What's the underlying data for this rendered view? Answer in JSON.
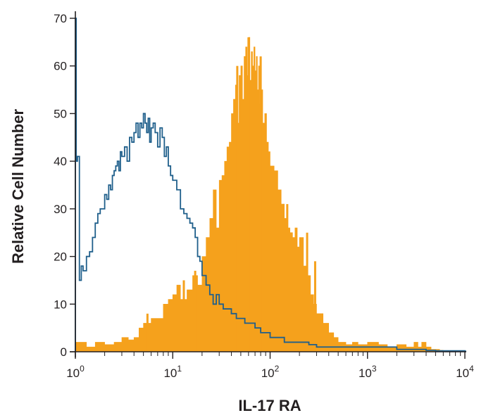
{
  "chart_data": {
    "type": "area",
    "title": "",
    "xlabel": "IL-17 RA",
    "ylabel": "Relative Cell Number",
    "x_scale": "log",
    "xlim": [
      1,
      10000
    ],
    "ylim": [
      0,
      70
    ],
    "x_ticks": [
      {
        "value": 1,
        "base": "10",
        "exp": "0"
      },
      {
        "value": 10,
        "base": "10",
        "exp": "1"
      },
      {
        "value": 100,
        "base": "10",
        "exp": "2"
      },
      {
        "value": 1000,
        "base": "10",
        "exp": "3"
      },
      {
        "value": 10000,
        "base": "10",
        "exp": "4"
      }
    ],
    "y_ticks": [
      "0",
      "10",
      "20",
      "30",
      "40",
      "50",
      "60",
      "70"
    ],
    "grid": false,
    "legend": "none",
    "series": [
      {
        "style": "filled",
        "color": "#f5a11c",
        "x": [
          1,
          1.3,
          1.6,
          2,
          2.5,
          3,
          3.5,
          4,
          4.5,
          5,
          6,
          7,
          8,
          9,
          10,
          11,
          12,
          14,
          16,
          18,
          20,
          22,
          24,
          26,
          28,
          30,
          32,
          34,
          36,
          38,
          40,
          42,
          44,
          46,
          48,
          50,
          52,
          54,
          56,
          58,
          60,
          62,
          64,
          66,
          68,
          70,
          72,
          74,
          76,
          78,
          80,
          84,
          88,
          92,
          96,
          100,
          110,
          120,
          130,
          140,
          150,
          160,
          170,
          180,
          190,
          200,
          220,
          240,
          260,
          280,
          300,
          350,
          400,
          450,
          500,
          600,
          700,
          800,
          1000,
          1300,
          1600,
          2000,
          2500,
          3000,
          3300,
          3600,
          4000,
          4500,
          5000,
          5500,
          6000
        ],
        "y": [
          2,
          1,
          2,
          1.5,
          2,
          3,
          2.5,
          3,
          5,
          6,
          7,
          7,
          10,
          11,
          12,
          14,
          11,
          13,
          16,
          14,
          20,
          24,
          28,
          34,
          26,
          36,
          37,
          40,
          43,
          44,
          50,
          53,
          56,
          48,
          58,
          60,
          53,
          62,
          64,
          58,
          66,
          57,
          63,
          60,
          64,
          59,
          62,
          55,
          60,
          52,
          55,
          48,
          50,
          44,
          42,
          39,
          38,
          34,
          31,
          28,
          26,
          25,
          24,
          26,
          22,
          24,
          18,
          16,
          12,
          10,
          8,
          6,
          4,
          3,
          2,
          1.5,
          2,
          1.5,
          2,
          1.5,
          1,
          1.5,
          1,
          2,
          1,
          2,
          1,
          0.5,
          0.5,
          0.3,
          0
        ],
        "spikes": [
          {
            "x": 5.5,
            "y": 8
          },
          {
            "x": 13,
            "y": 15
          },
          {
            "x": 17,
            "y": 17
          },
          {
            "x": 46,
            "y": 60
          },
          {
            "x": 60,
            "y": 66
          },
          {
            "x": 80,
            "y": 62
          },
          {
            "x": 150,
            "y": 31
          },
          {
            "x": 240,
            "y": 25
          },
          {
            "x": 290,
            "y": 19
          }
        ]
      },
      {
        "style": "outline",
        "color": "#1f5f8b",
        "x": [
          1,
          1.02,
          1.05,
          1.1,
          1.15,
          1.2,
          1.3,
          1.4,
          1.5,
          1.6,
          1.7,
          1.8,
          1.9,
          2,
          2.1,
          2.2,
          2.3,
          2.4,
          2.5,
          2.6,
          2.7,
          2.8,
          2.9,
          3,
          3.2,
          3.4,
          3.6,
          3.8,
          4,
          4.2,
          4.4,
          4.6,
          4.8,
          5,
          5.2,
          5.4,
          5.6,
          5.8,
          6,
          6.3,
          6.6,
          7,
          7.4,
          7.8,
          8.2,
          8.6,
          9,
          9.5,
          10,
          11,
          12,
          13,
          14,
          15,
          16,
          17,
          18,
          19,
          20,
          22,
          24,
          26,
          28,
          30,
          33,
          36,
          40,
          45,
          50,
          55,
          60,
          70,
          80,
          90,
          100,
          120,
          140,
          160,
          200,
          250,
          300,
          400,
          500,
          700,
          1000,
          1500,
          2000,
          3000,
          4000,
          5000,
          10000
        ],
        "y": [
          70,
          40,
          41,
          15,
          18,
          17,
          20,
          21,
          24,
          27,
          29,
          30,
          30,
          33,
          32,
          35,
          34,
          37,
          38,
          39,
          40,
          38,
          42,
          41,
          43,
          40,
          45,
          44,
          46,
          48,
          45,
          48,
          47,
          50,
          48,
          46,
          49,
          44,
          47,
          48,
          46,
          43,
          47,
          45,
          41,
          43,
          39,
          37,
          36,
          34,
          30,
          29,
          28,
          27,
          26,
          24,
          20,
          19,
          16,
          14,
          12,
          10,
          12,
          10,
          9,
          9,
          8,
          7,
          7,
          6,
          6,
          5,
          4,
          4,
          3,
          3,
          2,
          2,
          2,
          1.5,
          1,
          1,
          1,
          1,
          1,
          1,
          0.5,
          0.5,
          0.3,
          0.2,
          0.1
        ]
      }
    ]
  }
}
